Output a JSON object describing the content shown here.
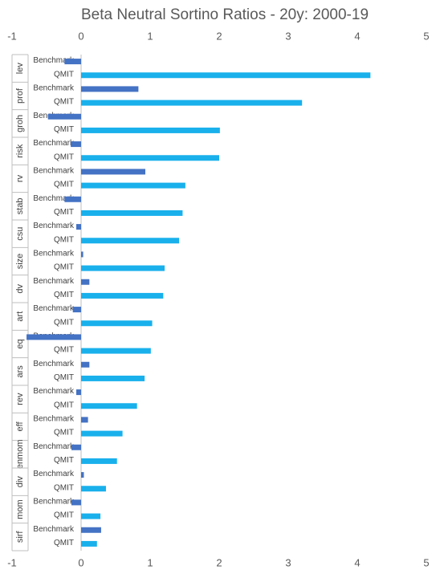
{
  "chart_data": {
    "type": "hbar-grouped",
    "title": "Beta Neutral Sortino Ratios - 20y: 2000-19",
    "categories": [
      "lev",
      "prof",
      "groh",
      "risk",
      "rv",
      "stab",
      "csu",
      "size",
      "dv",
      "art",
      "eq",
      "ars",
      "rev",
      "eff",
      "enmom",
      "div",
      "mom",
      "sirf"
    ],
    "series": [
      {
        "name": "Benchmark",
        "color": "#4472c4",
        "values": [
          -0.24,
          0.83,
          -0.48,
          -0.15,
          0.93,
          -0.24,
          -0.07,
          0.03,
          0.12,
          -0.12,
          -0.79,
          0.12,
          -0.07,
          0.1,
          -0.14,
          0.04,
          -0.14,
          0.29
        ]
      },
      {
        "name": "QMIT",
        "color": "#19b0ec",
        "values": [
          4.19,
          3.2,
          2.01,
          2.0,
          1.51,
          1.47,
          1.42,
          1.21,
          1.19,
          1.03,
          1.01,
          0.92,
          0.81,
          0.6,
          0.52,
          0.36,
          0.28,
          0.23
        ]
      }
    ],
    "xlim": [
      -1,
      5
    ],
    "xticks": [
      -1,
      0,
      1,
      2,
      3,
      4,
      5
    ],
    "grid": false
  }
}
